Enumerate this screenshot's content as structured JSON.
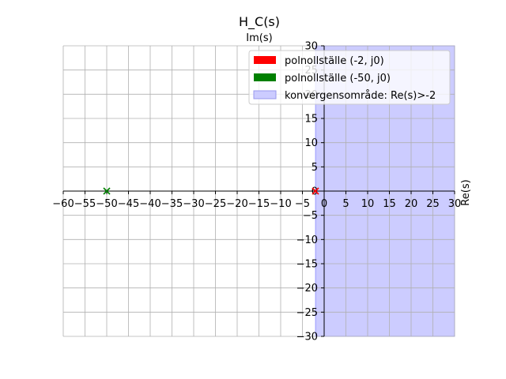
{
  "chart_data": {
    "type": "scatter",
    "title": "H_C(s)",
    "xlabel": "Re(s)",
    "ylabel": "Im(s)",
    "xlim": [
      -60,
      30
    ],
    "ylim": [
      -30,
      30
    ],
    "xticks": [
      -60,
      -55,
      -50,
      -45,
      -40,
      -35,
      -30,
      -25,
      -20,
      -15,
      -10,
      -5,
      0,
      5,
      10,
      15,
      20,
      25,
      30
    ],
    "yticks": [
      -30,
      -25,
      -20,
      -15,
      -10,
      -5,
      0,
      5,
      10,
      15,
      20,
      25,
      30
    ],
    "grid": true,
    "legend_position": "top-right",
    "series": [
      {
        "name": "polnollställe (-2, j0)",
        "marker": "x",
        "color": "#ff0000",
        "points": [
          [
            -2,
            0
          ]
        ]
      },
      {
        "name": "polnollställe (-50, j0)",
        "marker": "x",
        "color": "#008000",
        "points": [
          [
            -50,
            0
          ]
        ]
      }
    ],
    "region": {
      "name": "konvergensområde: Re(s)>-2",
      "x_from": -2,
      "x_to": 30,
      "color": "#ccccff"
    }
  }
}
